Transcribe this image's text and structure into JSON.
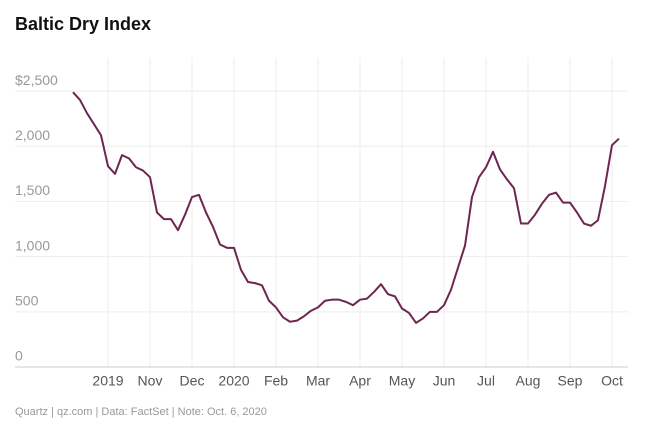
{
  "chart_data": {
    "type": "line",
    "title": "Baltic Dry Index",
    "note": "Quartz | qz.com | Data: FactSet | Note: Oct. 6, 2020",
    "categories": [
      null,
      null,
      null,
      null,
      null,
      "2019",
      null,
      null,
      null,
      null,
      null,
      "Nov",
      null,
      null,
      null,
      null,
      null,
      "Dec",
      null,
      null,
      null,
      null,
      null,
      "2020",
      null,
      null,
      null,
      null,
      null,
      "Feb",
      null,
      null,
      null,
      null,
      null,
      "Mar",
      null,
      null,
      null,
      null,
      null,
      "Apr",
      null,
      null,
      null,
      null,
      null,
      "May",
      null,
      null,
      null,
      null,
      null,
      "Jun",
      null,
      null,
      null,
      null,
      null,
      "Jul",
      null,
      null,
      null,
      null,
      null,
      "Aug",
      null,
      null,
      null,
      null,
      null,
      "Sep",
      null,
      null,
      null,
      null,
      null,
      "Oct",
      null
    ],
    "series": [
      {
        "name": "Baltic Dry Index",
        "color": "#6e2650",
        "values": [
          2490,
          2420,
          2300,
          2200,
          2100,
          1820,
          1750,
          1920,
          1890,
          1810,
          1780,
          1720,
          1400,
          1340,
          1340,
          1240,
          1380,
          1540,
          1560,
          1400,
          1270,
          1110,
          1080,
          1080,
          880,
          770,
          760,
          740,
          600,
          540,
          450,
          410,
          420,
          460,
          510,
          540,
          600,
          610,
          610,
          590,
          560,
          610,
          620,
          680,
          750,
          660,
          640,
          530,
          490,
          400,
          440,
          500,
          500,
          560,
          700,
          900,
          1100,
          1540,
          1720,
          1810,
          1950,
          1790,
          1700,
          1620,
          1300,
          1300,
          1380,
          1480,
          1560,
          1580,
          1490,
          1490,
          1400,
          1300,
          1280,
          1330,
          1640,
          2010,
          2070
        ]
      }
    ],
    "ylim": [
      0,
      2800
    ],
    "yticks": [
      0,
      500,
      {
        "value": 1000,
        "label": "1,000"
      },
      {
        "value": 1500,
        "label": "1,500"
      },
      {
        "value": 2000,
        "label": "2,000"
      },
      {
        "value": 2500,
        "label": "$2,500"
      }
    ],
    "grid": true
  }
}
